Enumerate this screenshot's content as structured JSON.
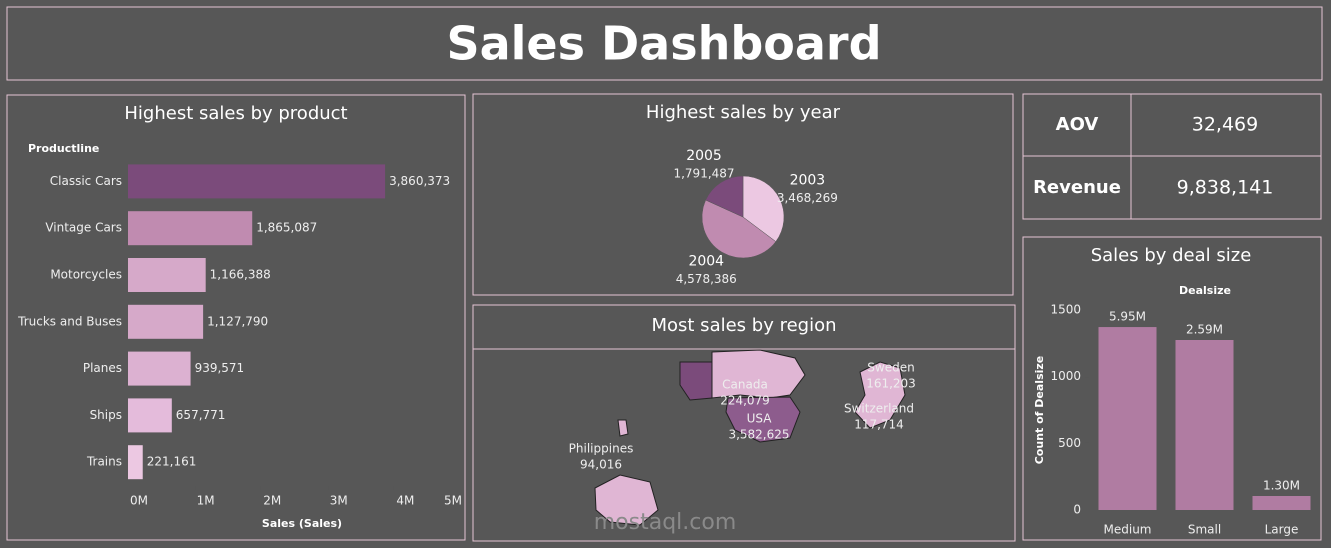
{
  "header": {
    "title": "Sales Dashboard"
  },
  "chart_data": [
    {
      "type": "hbar",
      "title": "Highest sales by product",
      "category_label": "Productline",
      "x_label": "Sales (Sales)",
      "categories": [
        "Classic Cars",
        "Vintage Cars",
        "Motorcycles",
        "Trucks and Buses",
        "Planes",
        "Ships",
        "Trains"
      ],
      "values": [
        3860373,
        1865087,
        1166388,
        1127790,
        939571,
        657771,
        221161
      ],
      "value_labels": [
        "3,860,373",
        "1,865,087",
        "1,166,388",
        "1,127,790",
        "939,571",
        "657,771",
        "221,161"
      ],
      "colors": [
        "#7b4b7b",
        "#c08bb0",
        "#d6a9c9",
        "#d6a9c9",
        "#dcb1d1",
        "#e4bbdb",
        "#ecc8e2"
      ],
      "xlim": [
        0,
        5000000
      ],
      "xticks": [
        {
          "value": 0,
          "label": "0M"
        },
        {
          "value": 1000000,
          "label": "1M"
        },
        {
          "value": 2000000,
          "label": "2M"
        },
        {
          "value": 3000000,
          "label": "3M"
        },
        {
          "value": 4000000,
          "label": "4M"
        },
        {
          "value": 5000000,
          "label": "5M"
        }
      ]
    },
    {
      "type": "pie",
      "title": "Highest sales by year",
      "categories": [
        "2003",
        "2004",
        "2005"
      ],
      "values": [
        3468269,
        4578386,
        1791487
      ],
      "value_labels": [
        "3,468,269",
        "4,578,386",
        "1,791,487"
      ],
      "colors": [
        "#ecc8e2",
        "#c08bb0",
        "#7b4b7b"
      ]
    },
    {
      "type": "bar",
      "title": "Sales by deal size",
      "legend_title": "Dealsize",
      "y_label": "Count of Dealsize",
      "categories": [
        "Medium",
        "Small",
        "Large"
      ],
      "values": [
        1372,
        1275,
        105
      ],
      "bar_labels": [
        "5.95M",
        "2.59M",
        "1.30M"
      ],
      "color": "#b07ca2",
      "ylim": [
        0,
        1600
      ],
      "yticks": [
        0,
        500,
        1000,
        1500
      ]
    }
  ],
  "kpis": [
    {
      "label": "AOV",
      "value": "32,469"
    },
    {
      "label": "Revenue",
      "value": "9,838,141"
    }
  ],
  "map": {
    "title": "Most sales by region",
    "regions": [
      {
        "name": "Canada",
        "value": "224,079"
      },
      {
        "name": "USA",
        "value": "3,582,625"
      },
      {
        "name": "Sweden",
        "value": "161,203"
      },
      {
        "name": "Switzerland",
        "value": "117,714"
      },
      {
        "name": "Philippines",
        "value": "94,016"
      }
    ]
  },
  "watermark": "mostaql.com"
}
